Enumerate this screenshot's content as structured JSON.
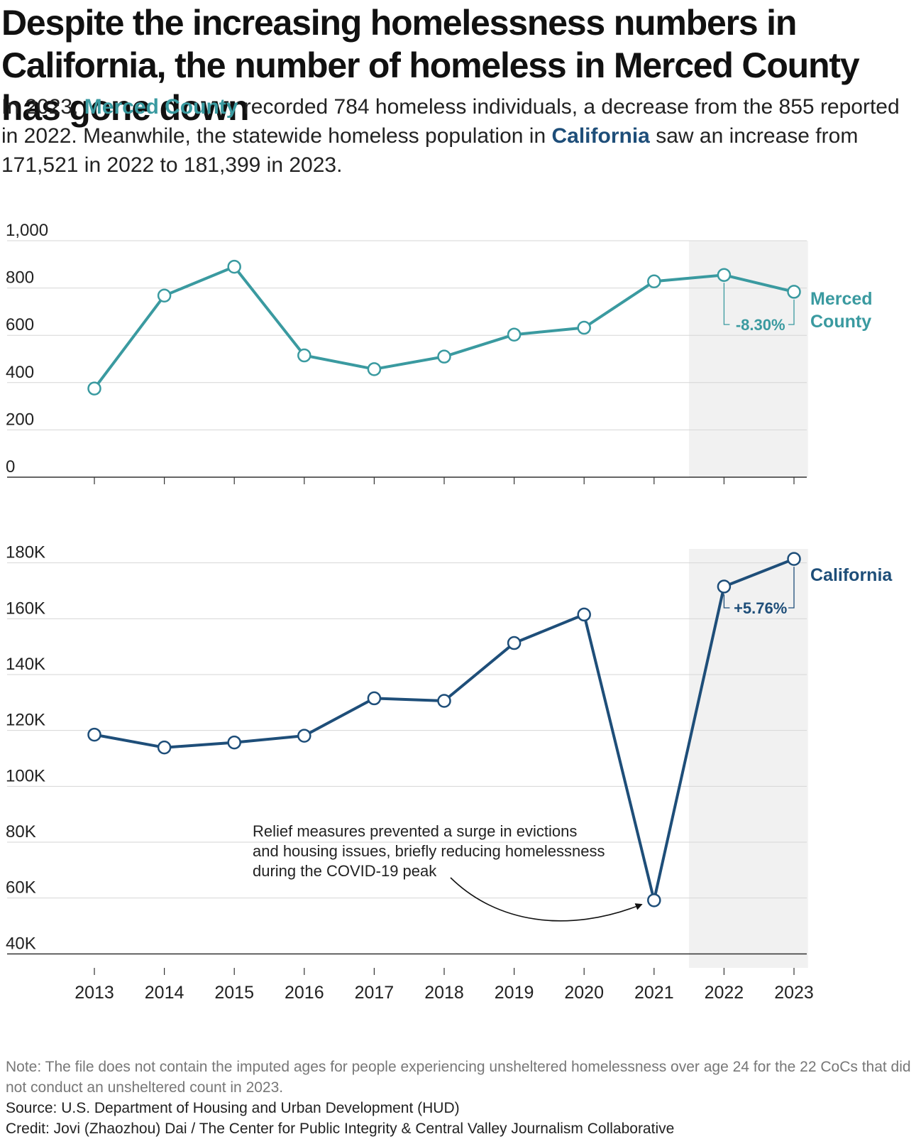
{
  "title": "Despite the increasing homelessness numbers in California, the number of homeless in Merced County has gone down",
  "subtitle": {
    "p1": "In 2023, ",
    "hl1": "Merced County",
    "p2": " recorded 784 homeless individuals, a decrease from the 855 reported in 2022. Meanwhile, the statewide homeless population in ",
    "hl2": "California",
    "p3": " saw an increase from 171,521 in 2022 to 181,399 in 2023."
  },
  "colors": {
    "merced": "#3a9aa0",
    "california": "#1e4e79",
    "highlight_band": "#f1f1f1",
    "grid": "#d6d6d6"
  },
  "chart_data": [
    {
      "type": "line",
      "series": [
        {
          "name": "Merced County",
          "x": [
            2013,
            2014,
            2015,
            2016,
            2017,
            2018,
            2019,
            2020,
            2021,
            2022,
            2023
          ],
          "values": [
            375,
            768,
            890,
            515,
            457,
            510,
            603,
            632,
            828,
            855,
            784
          ]
        }
      ],
      "ylim": [
        0,
        1000
      ],
      "yticks": [
        0,
        200,
        400,
        600,
        800,
        1000
      ],
      "ytick_labels": [
        "0",
        "200",
        "400",
        "600",
        "800",
        "1,000"
      ],
      "xticks": [
        2013,
        2014,
        2015,
        2016,
        2017,
        2018,
        2019,
        2020,
        2021,
        2022,
        2023
      ],
      "grid": true,
      "highlight_range": [
        2021.5,
        2023.2
      ],
      "change_annotation": {
        "from": 2022,
        "to": 2023,
        "text": "-8.30%"
      },
      "series_label_lines": [
        "Merced",
        "County"
      ]
    },
    {
      "type": "line",
      "series": [
        {
          "name": "California",
          "x": [
            2013,
            2014,
            2015,
            2016,
            2017,
            2018,
            2019,
            2020,
            2021,
            2022,
            2023
          ],
          "values": [
            118500,
            113900,
            115700,
            118100,
            131500,
            130600,
            151300,
            161500,
            59200,
            171521,
            181399
          ]
        }
      ],
      "ylim": [
        35000,
        185000
      ],
      "yticks": [
        40000,
        60000,
        80000,
        100000,
        120000,
        140000,
        160000,
        180000
      ],
      "ytick_labels": [
        "40K",
        "60K",
        "80K",
        "100K",
        "120K",
        "140K",
        "160K",
        "180K"
      ],
      "xticks": [
        2013,
        2014,
        2015,
        2016,
        2017,
        2018,
        2019,
        2020,
        2021,
        2022,
        2023
      ],
      "xtick_labels": [
        "2013",
        "2014",
        "2015",
        "2016",
        "2017",
        "2018",
        "2019",
        "2020",
        "2021",
        "2022",
        "2023"
      ],
      "grid": true,
      "highlight_range": [
        2021.5,
        2023.2
      ],
      "change_annotation": {
        "from": 2022,
        "to": 2023,
        "text": "+5.76%"
      },
      "series_label_lines": [
        "California"
      ],
      "annotation": {
        "lines": [
          "Relief measures prevented a surge in evictions",
          "and housing issues, briefly reducing homelessness",
          "during the COVID-19 peak"
        ],
        "points_to": 2021
      }
    }
  ],
  "footer": {
    "note": "Note: The file does not contain the imputed ages for people experiencing unsheltered homelessness over age 24 for the 22 CoCs that did not conduct an unsheltered count in 2023.",
    "source": "Source: U.S. Department of Housing and Urban Development (HUD)",
    "credit": "Credit: Jovi (Zhaozhou) Dai / The Center for Public Integrity & Central Valley Journalism Collaborative"
  }
}
